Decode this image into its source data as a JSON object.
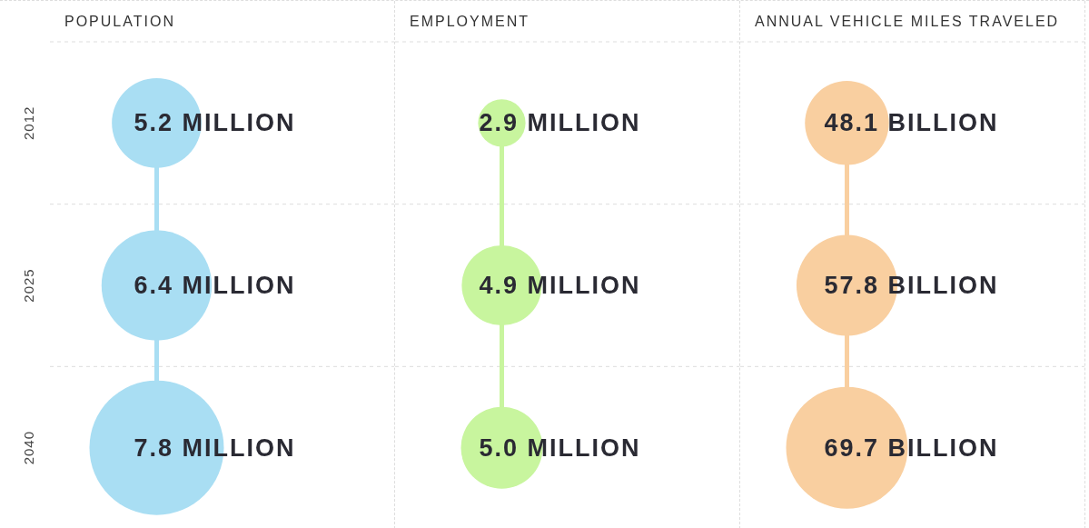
{
  "chart_data": [
    {
      "type": "other",
      "title": "POPULATION",
      "categories": [
        "2012",
        "2025",
        "2040"
      ],
      "values": [
        5.2,
        6.4,
        7.8
      ],
      "value_labels": [
        "5.2 MILLION",
        "6.4 MILLION",
        "7.8 MILLION"
      ],
      "color": "#a9def3"
    },
    {
      "type": "other",
      "title": "EMPLOYMENT",
      "categories": [
        null,
        null,
        null
      ],
      "values": [
        2.9,
        4.9,
        5.0
      ],
      "value_labels": [
        "2.9 MILLION",
        "4.9 MILLION",
        "5.0 MILLION"
      ],
      "color": "#c8f59e"
    },
    {
      "type": "other",
      "title": "ANNUAL VEHICLE MILES TRAVELED",
      "categories": [
        null,
        null,
        null
      ],
      "values": [
        48.1,
        57.8,
        69.7
      ],
      "value_labels": [
        "48.1 BILLION",
        "57.8 BILLION",
        "69.7 BILLION"
      ],
      "color": "#f9cfa0"
    }
  ]
}
